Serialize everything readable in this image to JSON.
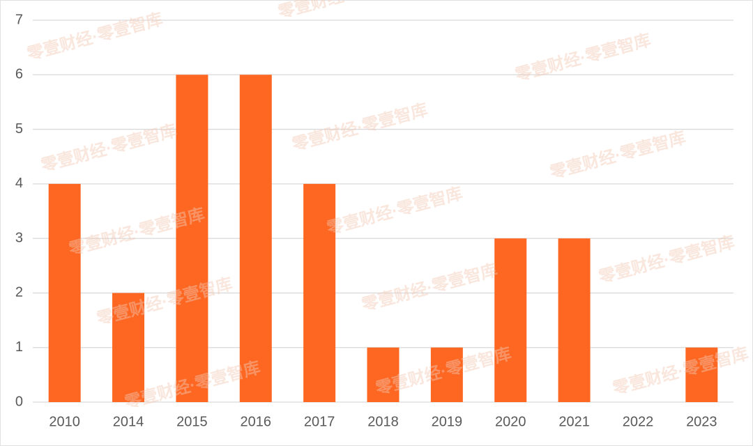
{
  "chart_data": {
    "type": "bar",
    "categories": [
      "2010",
      "2014",
      "2015",
      "2016",
      "2017",
      "2018",
      "2019",
      "2020",
      "2021",
      "2022",
      "2023"
    ],
    "values": [
      4,
      2,
      6,
      6,
      4,
      1,
      1,
      3,
      3,
      0,
      1
    ],
    "color": "#fd6722",
    "ylim": [
      0,
      7
    ],
    "yticks": [
      0,
      1,
      2,
      3,
      4,
      5,
      6,
      7
    ],
    "grid": true,
    "watermark": "零壹财经·零壹智库"
  }
}
